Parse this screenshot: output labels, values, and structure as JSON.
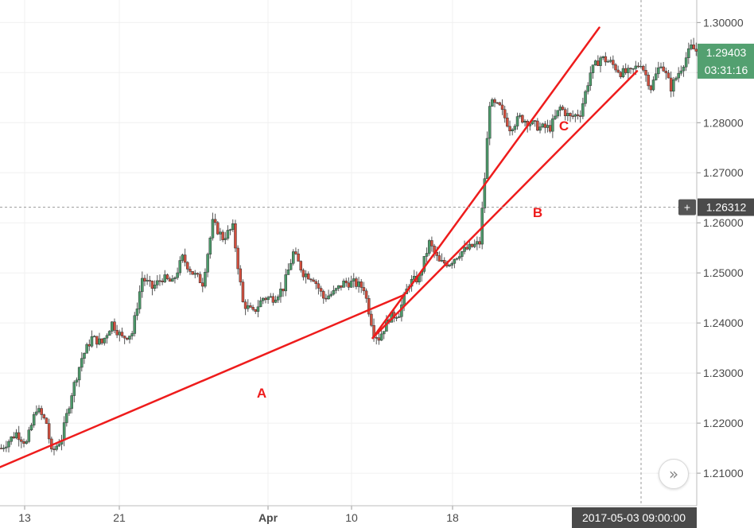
{
  "chart_data": {
    "type": "candlestick",
    "y_ticks": [
      "1.30000",
      "1.29000",
      "1.28000",
      "1.27000",
      "1.26000",
      "1.25000",
      "1.24000",
      "1.23000",
      "1.22000",
      "1.21000"
    ],
    "ylim": [
      1.2035,
      1.3045
    ],
    "x_ticks": [
      {
        "label": "13",
        "bold": false
      },
      {
        "label": "21",
        "bold": false
      },
      {
        "label": "Apr",
        "bold": true
      },
      {
        "label": "10",
        "bold": false
      },
      {
        "label": "18",
        "bold": false
      }
    ],
    "close_path": [
      [
        0,
        1.215
      ],
      [
        6,
        1.218
      ],
      [
        10,
        1.216
      ],
      [
        14,
        1.223
      ],
      [
        18,
        1.22
      ],
      [
        20,
        1.214
      ],
      [
        24,
        1.217
      ],
      [
        28,
        1.226
      ],
      [
        32,
        1.233
      ],
      [
        36,
        1.237
      ],
      [
        40,
        1.236
      ],
      [
        44,
        1.24
      ],
      [
        48,
        1.237
      ],
      [
        52,
        1.238
      ],
      [
        56,
        1.249
      ],
      [
        60,
        1.247
      ],
      [
        64,
        1.249
      ],
      [
        68,
        1.248
      ],
      [
        72,
        1.253
      ],
      [
        76,
        1.25
      ],
      [
        80,
        1.248
      ],
      [
        84,
        1.26
      ],
      [
        88,
        1.257
      ],
      [
        92,
        1.259
      ],
      [
        96,
        1.244
      ],
      [
        100,
        1.242
      ],
      [
        104,
        1.245
      ],
      [
        108,
        1.245
      ],
      [
        112,
        1.247
      ],
      [
        116,
        1.254
      ],
      [
        120,
        1.25
      ],
      [
        124,
        1.249
      ],
      [
        128,
        1.245
      ],
      [
        132,
        1.246
      ],
      [
        136,
        1.248
      ],
      [
        140,
        1.248
      ],
      [
        144,
        1.247
      ],
      [
        148,
        1.238
      ],
      [
        150,
        1.237
      ],
      [
        154,
        1.241
      ],
      [
        158,
        1.242
      ],
      [
        162,
        1.248
      ],
      [
        166,
        1.249
      ],
      [
        170,
        1.256
      ],
      [
        174,
        1.252
      ],
      [
        178,
        1.252
      ],
      [
        182,
        1.254
      ],
      [
        186,
        1.255
      ],
      [
        190,
        1.256
      ],
      [
        192,
        1.269
      ],
      [
        194,
        1.284
      ],
      [
        198,
        1.283
      ],
      [
        202,
        1.279
      ],
      [
        206,
        1.281
      ],
      [
        210,
        1.28
      ],
      [
        214,
        1.279
      ],
      [
        218,
        1.279
      ],
      [
        222,
        1.283
      ],
      [
        226,
        1.281
      ],
      [
        230,
        1.282
      ],
      [
        234,
        1.29
      ],
      [
        238,
        1.293
      ],
      [
        242,
        1.292
      ],
      [
        246,
        1.29
      ],
      [
        250,
        1.29
      ],
      [
        254,
        1.292
      ],
      [
        258,
        1.287
      ],
      [
        262,
        1.292
      ],
      [
        266,
        1.287
      ],
      [
        270,
        1.291
      ],
      [
        274,
        1.295
      ],
      [
        277,
        1.294
      ]
    ],
    "last_price": "1.29403",
    "countdown": "03:31:16",
    "crosshair_price": "1.26312",
    "crosshair_date": "2017-05-03 09:00:00",
    "trendlines": [
      {
        "label": "A",
        "from": [
          0.0,
          1.2112
        ],
        "to": [
          160.0,
          1.2455
        ]
      },
      {
        "label": "B",
        "from": [
          148.0,
          1.237
        ],
        "to": [
          253.0,
          1.2903
        ]
      },
      {
        "label": "C",
        "from": [
          148.0,
          1.237
        ],
        "to": [
          238.0,
          1.299
        ]
      }
    ],
    "colors": {
      "up": "#4c9a6a",
      "down": "#d24e3d",
      "trendline": "#ee1c1c",
      "price_badge": "#53a070",
      "crosshair_badge": "#4a4a4a"
    },
    "grid": true,
    "crosshair_symbol": "+"
  },
  "scroll_button_icon": "»"
}
